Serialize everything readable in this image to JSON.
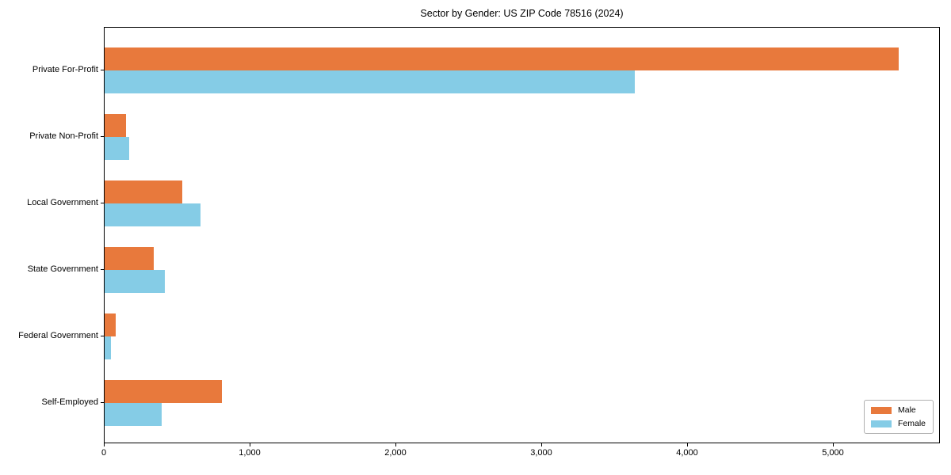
{
  "chart_data": {
    "type": "bar",
    "orientation": "horizontal",
    "title": "Sector by Gender: US ZIP Code 78516 (2024)",
    "categories": [
      "Private For-Profit",
      "Private Non-Profit",
      "Local Government",
      "State Government",
      "Federal Government",
      "Self-Employed"
    ],
    "series": [
      {
        "name": "Male",
        "color": "#e8793c",
        "values": [
          5445,
          145,
          530,
          335,
          75,
          805
        ]
      },
      {
        "name": "Female",
        "color": "#85cce6",
        "values": [
          3635,
          170,
          655,
          415,
          45,
          390
        ]
      }
    ],
    "xlabel": "",
    "ylabel": "",
    "xlim": [
      0,
      5720
    ],
    "xticks": [
      0,
      1000,
      2000,
      3000,
      4000,
      5000
    ],
    "xtick_labels": [
      "0",
      "1,000",
      "2,000",
      "3,000",
      "4,000",
      "5,000"
    ],
    "grid": false,
    "legend": {
      "position": "lower right",
      "entries": [
        "Male",
        "Female"
      ]
    },
    "colors": {
      "male": "#e8793c",
      "female": "#85cce6",
      "spine": "#000000",
      "background": "#ffffff",
      "legend_border": "#b0b0b0"
    }
  }
}
